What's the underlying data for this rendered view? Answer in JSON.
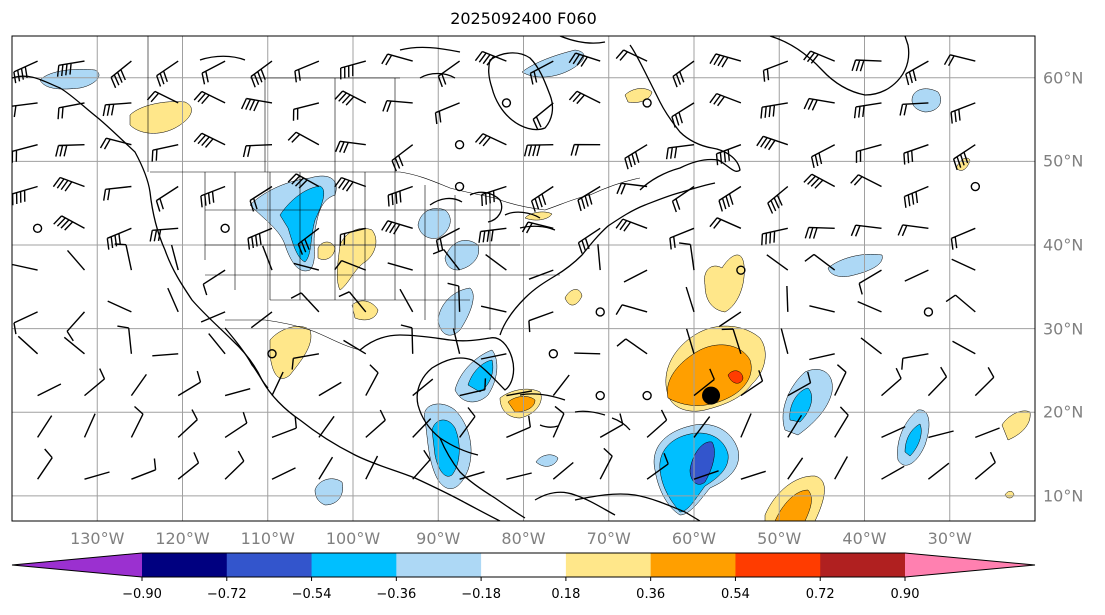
{
  "title": "2025092400 F060",
  "map": {
    "projection": "equirectangular",
    "extent": {
      "lon": [
        -140,
        -20
      ],
      "lat": [
        7,
        65
      ]
    },
    "grid": true,
    "lon_ticks": [
      "130°W",
      "120°W",
      "110°W",
      "100°W",
      "90°W",
      "80°W",
      "70°W",
      "60°W",
      "50°W",
      "40°W",
      "30°W"
    ],
    "lat_ticks": [
      "60°N",
      "50°N",
      "40°N",
      "30°N",
      "20°N",
      "10°N"
    ],
    "storm_marker": {
      "lon": -58,
      "lat": 22
    },
    "wind_barbs": true,
    "coastlines": true,
    "state_borders": true
  },
  "colorbar": {
    "ticks": [
      "−0.90",
      "−0.72",
      "−0.54",
      "−0.36",
      "−0.18",
      "0.18",
      "0.36",
      "0.54",
      "0.72",
      "0.90"
    ],
    "colors": [
      "#9b30d0",
      "#000080",
      "#3355cc",
      "#00bfff",
      "#add8f5",
      "#ffffff",
      "#ffe78a",
      "#ff9f00",
      "#ff3c00",
      "#b02020",
      "#ff80b0"
    ],
    "extend": "both"
  }
}
